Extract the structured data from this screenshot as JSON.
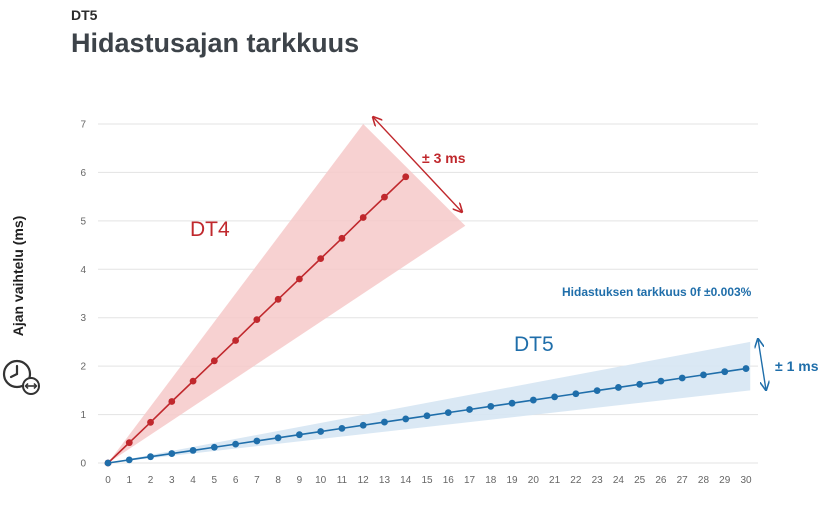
{
  "header": {
    "eyebrow": "DT5",
    "title": "Hidastusajan tarkkuus"
  },
  "y_axis_icon": "clock-with-arrows-icon",
  "chart_data": {
    "type": "line",
    "title": "Hidastusajan tarkkuus",
    "xlabel": "",
    "ylabel": "Ajan vaihtelu (ms)",
    "xlim": [
      0,
      30
    ],
    "ylim": [
      0,
      7
    ],
    "x_ticks": [
      0,
      1,
      2,
      3,
      4,
      5,
      6,
      7,
      8,
      9,
      10,
      11,
      12,
      13,
      14,
      15,
      16,
      17,
      18,
      19,
      20,
      21,
      22,
      23,
      24,
      25,
      26,
      27,
      28,
      29,
      30
    ],
    "y_ticks": [
      0,
      1,
      2,
      3,
      4,
      5,
      6,
      7
    ],
    "grid": "horizontal",
    "series": [
      {
        "name": "DT4",
        "color": "#c0282d",
        "band_color": "#f6c9c9",
        "x": [
          0,
          1,
          2,
          3,
          4,
          5,
          6,
          7,
          8,
          9,
          10,
          11,
          12,
          13,
          14
        ],
        "y": [
          0,
          0.42,
          0.84,
          1.27,
          1.69,
          2.11,
          2.53,
          2.96,
          3.38,
          3.8,
          4.22,
          4.64,
          5.07,
          5.49,
          5.91
        ],
        "tolerance_label": "± 3 ms"
      },
      {
        "name": "DT5",
        "color": "#1f6eaa",
        "band_color": "#d6e6f3",
        "x": [
          0,
          1,
          2,
          3,
          4,
          5,
          6,
          7,
          8,
          9,
          10,
          11,
          12,
          13,
          14,
          15,
          16,
          17,
          18,
          19,
          20,
          21,
          22,
          23,
          24,
          25,
          26,
          27,
          28,
          29,
          30
        ],
        "y": [
          0,
          0.065,
          0.13,
          0.195,
          0.26,
          0.325,
          0.39,
          0.455,
          0.52,
          0.585,
          0.65,
          0.715,
          0.78,
          0.845,
          0.91,
          0.975,
          1.04,
          1.105,
          1.17,
          1.235,
          1.3,
          1.365,
          1.43,
          1.495,
          1.56,
          1.625,
          1.69,
          1.755,
          1.82,
          1.885,
          1.95
        ],
        "tolerance_label": "± 1 ms"
      }
    ],
    "annotations": [
      {
        "text": "Hidastuksen tarkkuus 0f ±0.003%",
        "color": "#1f6eaa"
      }
    ]
  }
}
